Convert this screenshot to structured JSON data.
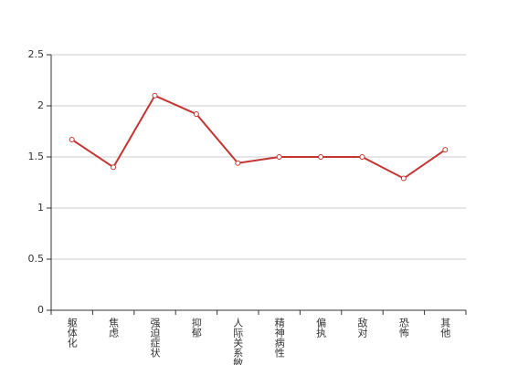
{
  "chart_data": {
    "type": "line",
    "categories": [
      "躯体化",
      "焦虑",
      "强迫症状",
      "抑郁",
      "人际关系敏感",
      "精神病性",
      "偏执",
      "敌对",
      "恐怖",
      "其他"
    ],
    "series": [
      {
        "color": "#c23531",
        "values": [
          1.67,
          1.4,
          2.1,
          1.92,
          1.44,
          1.5,
          1.5,
          1.5,
          1.29,
          1.57
        ]
      }
    ],
    "ylim": [
      0,
      2.5
    ],
    "yticks": [
      0,
      0.5,
      1,
      1.5,
      2,
      2.5
    ],
    "grid": true
  }
}
